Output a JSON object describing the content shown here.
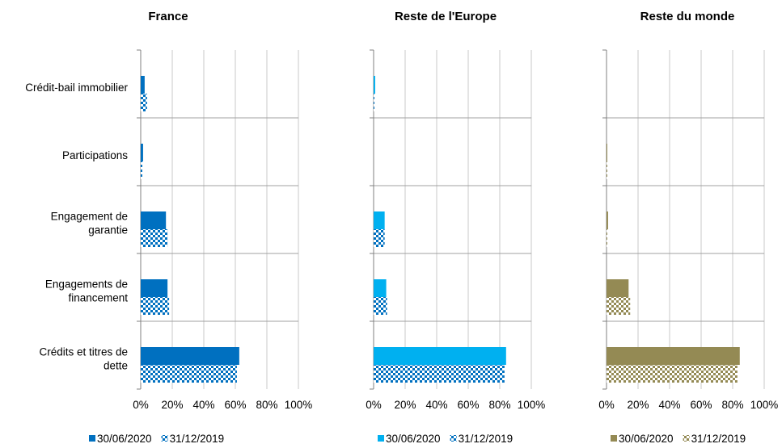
{
  "chart_data": [
    {
      "type": "bar",
      "orientation": "horizontal",
      "title": "France",
      "categories": [
        "Crédit-bail immobilier",
        "Participations",
        "Engagement de garantie",
        "Engagements de financement",
        "Crédits et titres de dette"
      ],
      "series": [
        {
          "name": "30/06/2020",
          "values": [
            2.5,
            1.5,
            16,
            17,
            62.5
          ],
          "color": "#0070c0",
          "pattern": "solid"
        },
        {
          "name": "31/12/2019",
          "values": [
            4,
            1,
            17,
            18,
            61
          ],
          "color": "#0070c0",
          "pattern": "hatched"
        }
      ],
      "xlim": [
        0,
        100
      ],
      "xticks": [
        "0%",
        "20%",
        "40%",
        "60%",
        "80%",
        "100%"
      ],
      "grid": true,
      "legend": "bottom"
    },
    {
      "type": "bar",
      "orientation": "horizontal",
      "title": "Reste de l'Europe",
      "categories": [
        "Crédit-bail immobilier",
        "Participations",
        "Engagement de garantie",
        "Engagements de financement",
        "Crédits et titres de dette"
      ],
      "series": [
        {
          "name": "30/06/2020",
          "values": [
            1,
            0,
            7,
            8,
            84
          ],
          "color": "#00b0f0",
          "pattern": "solid"
        },
        {
          "name": "31/12/2019",
          "values": [
            0.5,
            0,
            7,
            8.5,
            83
          ],
          "color": "#0070c0",
          "pattern": "hatched"
        }
      ],
      "xlim": [
        0,
        100
      ],
      "xticks": [
        "0%",
        "20%",
        "40%",
        "60%",
        "80%",
        "100%"
      ],
      "grid": true,
      "legend": "bottom"
    },
    {
      "type": "bar",
      "orientation": "horizontal",
      "title": "Reste du monde",
      "categories": [
        "Crédit-bail immobilier",
        "Participations",
        "Engagement de garantie",
        "Engagements de financement",
        "Crédits et titres de dette"
      ],
      "series": [
        {
          "name": "30/06/2020",
          "values": [
            0,
            0.5,
            1,
            14,
            84.5
          ],
          "color": "#948a54",
          "pattern": "solid"
        },
        {
          "name": "31/12/2019",
          "values": [
            0,
            0.5,
            0.5,
            15,
            83
          ],
          "color": "#948a54",
          "pattern": "hatched"
        }
      ],
      "xlim": [
        0,
        100
      ],
      "xticks": [
        "0%",
        "20%",
        "40%",
        "60%",
        "80%",
        "100%"
      ],
      "grid": true,
      "legend": "bottom"
    }
  ],
  "category_labels": [
    [
      "Crédit-bail immobilier"
    ],
    [
      "Participations"
    ],
    [
      "Engagement de",
      "garantie"
    ],
    [
      "Engagements de",
      "financement"
    ],
    [
      "Crédits et titres de",
      "dette"
    ]
  ]
}
